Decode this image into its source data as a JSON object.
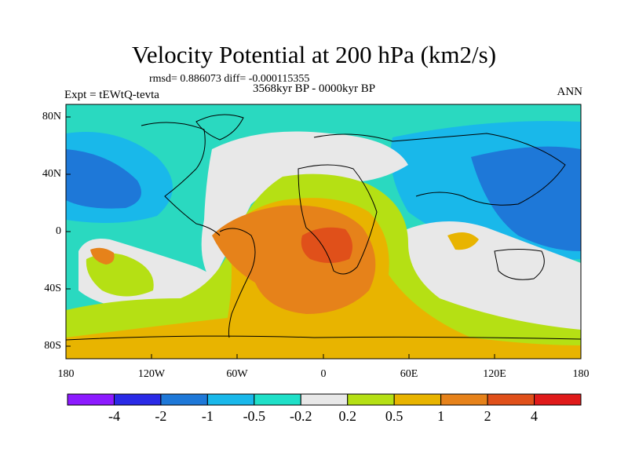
{
  "title": "Velocity Potential at 200 hPa (km2/s)",
  "stats_line": "rmsd= 0.886073 diff= -0.000115355",
  "experiment": "Expt = tEWtQ-tevta",
  "period": "3568kyr BP - 0000kyr BP",
  "season": "ANN",
  "y_axis_labels": [
    "80N",
    "40N",
    "0",
    "40S",
    "80S"
  ],
  "x_axis_labels": [
    "180",
    "120W",
    "60W",
    "0",
    "60E",
    "120E",
    "180"
  ],
  "colorbar": {
    "labels": [
      "-4",
      "-2",
      "-1",
      "-0.5",
      "-0.2",
      "0.2",
      "0.5",
      "1",
      "2",
      "4"
    ],
    "colors": [
      "#8c1aff",
      "#2a2ae6",
      "#1e78d8",
      "#19b8ea",
      "#1fe0c8",
      "#e8e8e8",
      "#b5e014",
      "#e8b400",
      "#e6821a",
      "#e0501a",
      "#e01a1a"
    ]
  },
  "map_colors": {
    "ocean_bg": "#2ad9c0",
    "neg_mid": "#19b8ea",
    "neg_strong": "#1e78d8",
    "near_zero": "#e8e8e8",
    "pos_low": "#b5e014",
    "pos_mid": "#e8b400",
    "pos_high": "#e6821a",
    "pos_max": "#e0501a"
  }
}
